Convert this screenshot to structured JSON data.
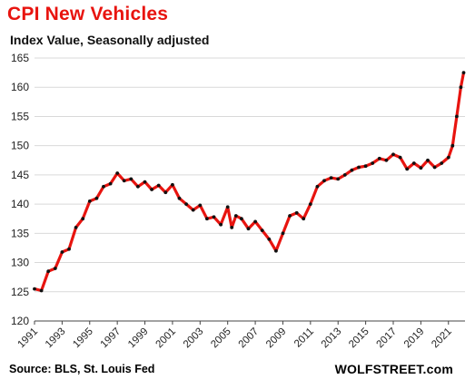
{
  "header": {
    "title": "CPI New Vehicles",
    "subtitle": "Index Value, Seasonally adjusted"
  },
  "footer": {
    "source": "Source: BLS, St. Louis Fed",
    "brand": "WOLFSTREET.com"
  },
  "colors": {
    "title": "#e8140f",
    "line": "#e8140f",
    "marker": "#111111",
    "grid": "#d9d9d9"
  },
  "chart_data": {
    "type": "line",
    "title": "CPI New Vehicles",
    "subtitle": "Index Value, Seasonally adjusted",
    "xlabel": "",
    "ylabel": "",
    "xlim": [
      1991,
      2022.2
    ],
    "ylim": [
      120,
      165
    ],
    "x_ticks": [
      "1991",
      "1993",
      "1995",
      "1997",
      "1999",
      "2001",
      "2003",
      "2005",
      "2007",
      "2009",
      "2011",
      "2013",
      "2015",
      "2017",
      "2019",
      "2021"
    ],
    "y_ticks": [
      "120",
      "125",
      "130",
      "135",
      "140",
      "145",
      "150",
      "155",
      "160",
      "165"
    ],
    "grid": "horizontal",
    "series": [
      {
        "x": [
          1991.0,
          1991.5,
          1992.0,
          1992.5,
          1993.0,
          1993.5,
          1994.0,
          1994.5,
          1995.0,
          1995.5,
          1996.0,
          1996.5,
          1997.0,
          1997.5,
          1998.0,
          1998.5,
          1999.0,
          1999.5,
          2000.0,
          2000.5,
          2001.0,
          2001.5,
          2002.0,
          2002.5,
          2003.0,
          2003.5,
          2004.0,
          2004.5,
          2005.0,
          2005.3,
          2005.6,
          2006.0,
          2006.5,
          2007.0,
          2007.5,
          2008.0,
          2008.5,
          2009.0,
          2009.5,
          2010.0,
          2010.5,
          2011.0,
          2011.5,
          2012.0,
          2012.5,
          2013.0,
          2013.5,
          2014.0,
          2014.5,
          2015.0,
          2015.5,
          2016.0,
          2016.5,
          2017.0,
          2017.5,
          2018.0,
          2018.5,
          2019.0,
          2019.5,
          2020.0,
          2020.5,
          2021.0,
          2021.3,
          2021.6,
          2021.9,
          2022.1
        ],
        "values": [
          125.5,
          125.2,
          128.5,
          129.0,
          131.8,
          132.3,
          136.0,
          137.5,
          140.5,
          141.0,
          143.0,
          143.5,
          145.3,
          144.0,
          144.3,
          143.0,
          143.8,
          142.5,
          143.2,
          142.0,
          143.3,
          141.0,
          140.0,
          139.0,
          139.8,
          137.5,
          137.8,
          136.5,
          139.5,
          136.0,
          138.0,
          137.5,
          135.8,
          137.0,
          135.5,
          134.0,
          132.0,
          135.0,
          138.0,
          138.5,
          137.5,
          140.0,
          143.0,
          144.0,
          144.5,
          144.3,
          145.0,
          145.8,
          146.3,
          146.5,
          147.0,
          147.8,
          147.5,
          148.5,
          148.0,
          146.0,
          147.0,
          146.2,
          147.5,
          146.3,
          147.0,
          148.0,
          150.0,
          155.0,
          160.0,
          162.5
        ]
      }
    ]
  }
}
